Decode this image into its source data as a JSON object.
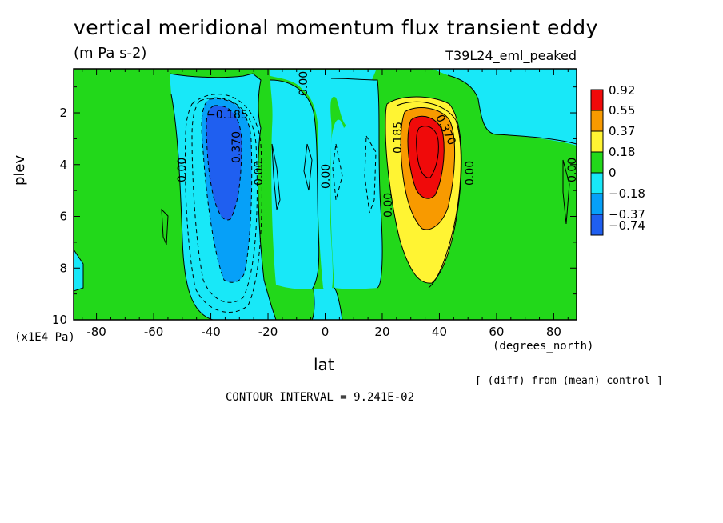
{
  "chart_data": {
    "type": "contour",
    "title": "vertical meridional momentum flux transient eddy",
    "units": "(m Pa s-2)",
    "run_label": "T39L24_eml_peaked",
    "xlabel": "lat",
    "x_units": "(degrees_north)",
    "ylabel": "plev",
    "y_units": "(x1E4 Pa)",
    "xlim": [
      -88,
      88
    ],
    "ylim": [
      10,
      0.3
    ],
    "x_ticks": [
      "-80",
      "-60",
      "-40",
      "-20",
      "0",
      "20",
      "40",
      "60",
      "80"
    ],
    "y_ticks": [
      "2",
      "4",
      "6",
      "8",
      "10"
    ],
    "x_tick_values": [
      -80,
      -60,
      -40,
      -20,
      0,
      20,
      40,
      60,
      80
    ],
    "y_tick_values": [
      2,
      4,
      6,
      8,
      10
    ],
    "color_levels": [
      "0.92",
      "0.55",
      "0.37",
      "0.18",
      "0",
      "−0.18",
      "−0.37",
      "−0.74"
    ],
    "colors": [
      "#f00a0a",
      "#f89a00",
      "#fff433",
      "#22d81a",
      "#18e8f8",
      "#06a0f8",
      "#1f5ff0"
    ],
    "contour_labels": [
      "−0.185",
      "0.370",
      "0.00",
      "0.00",
      "0.00",
      "0.00",
      "0.185",
      "0.370",
      "0.00",
      "0.00",
      "0.00"
    ],
    "features": [
      {
        "name": "southern negative cell",
        "lat": -35,
        "plev": 3.5,
        "min": -0.74
      },
      {
        "name": "northern positive cell",
        "lat": 35,
        "plev": 3.3,
        "max": 0.92
      }
    ],
    "contour_interval": "CONTOUR INTERVAL = 9.241E-02",
    "note": "[ (diff) from (mean) control ]"
  }
}
